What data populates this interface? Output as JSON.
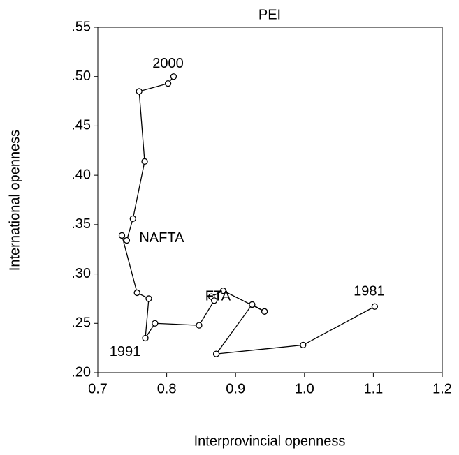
{
  "chart_data": {
    "type": "scatter",
    "connected": true,
    "title": "PEI",
    "x_label": "Interprovincial openness",
    "y_label": "International openness",
    "color": "#000000",
    "x": [
      1.102,
      0.998,
      0.872,
      0.924,
      0.942,
      0.882,
      0.865,
      0.869,
      0.847,
      0.783,
      0.769,
      0.774,
      0.757,
      0.735,
      0.742,
      0.751,
      0.768,
      0.76,
      0.802,
      0.81
    ],
    "values": [
      0.267,
      0.228,
      0.219,
      0.269,
      0.262,
      0.283,
      0.277,
      0.273,
      0.248,
      0.25,
      0.235,
      0.275,
      0.281,
      0.339,
      0.334,
      0.356,
      0.414,
      0.485,
      0.493,
      0.5
    ],
    "point_labels": [
      "1981",
      null,
      null,
      null,
      null,
      null,
      null,
      null,
      "FTA",
      null,
      "1991",
      null,
      null,
      null,
      "NAFTA",
      null,
      null,
      null,
      null,
      "2000"
    ],
    "xlim": [
      0.7,
      1.2
    ],
    "xticks": [
      0.7,
      0.8,
      0.9,
      {
        "value": 1.0,
        "label": "1.0"
      },
      1.1,
      1.2
    ],
    "ylim": [
      0.2,
      0.55
    ],
    "yticks": [
      {
        "value": 0.2,
        "label": ".20"
      },
      {
        "value": 0.25,
        "label": ".25"
      },
      {
        "value": 0.3,
        "label": ".30"
      },
      {
        "value": 0.35,
        "label": ".35"
      },
      {
        "value": 0.4,
        "label": ".40"
      },
      {
        "value": 0.45,
        "label": ".45"
      },
      {
        "value": 0.5,
        "label": ".50"
      },
      {
        "value": 0.55,
        "label": ".55"
      }
    ],
    "grid": false
  }
}
